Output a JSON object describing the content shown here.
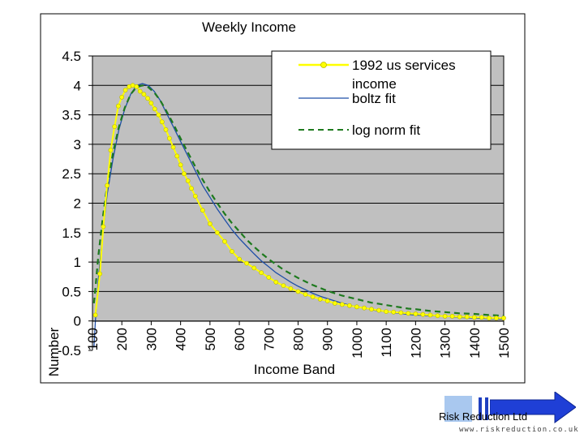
{
  "chart_data": {
    "type": "line",
    "title": "Weekly Income",
    "xlabel": "Income Band",
    "ylabel": "Number",
    "ylim": [
      -0.5,
      4.5
    ],
    "xlim": [
      100,
      1500
    ],
    "y_ticks": [
      "4.5",
      "4",
      "3.5",
      "3",
      "2.5",
      "2",
      "1.5",
      "1",
      "0.5",
      "0",
      "-0.5"
    ],
    "x_ticks": [
      "100",
      "200",
      "300",
      "400",
      "500",
      "600",
      "700",
      "800",
      "900",
      "1000",
      "1100",
      "1200",
      "1300",
      "1400",
      "1500"
    ],
    "grid": "horizontal",
    "legend_position": "top-right",
    "series": [
      {
        "name": "1992 us services income",
        "color": "#ffff00",
        "style": "line-markers",
        "x": [
          110,
          125,
          137,
          150,
          162,
          175,
          188,
          200,
          212,
          225,
          237,
          250,
          262,
          275,
          288,
          300,
          312,
          325,
          337,
          350,
          362,
          375,
          388,
          400,
          412,
          425,
          437,
          450,
          475,
          500,
          525,
          550,
          575,
          600,
          625,
          650,
          675,
          700,
          725,
          750,
          775,
          800,
          825,
          850,
          875,
          900,
          925,
          950,
          975,
          1000,
          1025,
          1050,
          1075,
          1100,
          1125,
          1150,
          1175,
          1200,
          1225,
          1250,
          1275,
          1300,
          1325,
          1350,
          1375,
          1400,
          1425,
          1450,
          1475,
          1500
        ],
        "values": [
          0.1,
          0.8,
          1.6,
          2.3,
          2.9,
          3.3,
          3.65,
          3.8,
          3.92,
          3.98,
          4.0,
          3.98,
          3.9,
          3.85,
          3.78,
          3.7,
          3.6,
          3.5,
          3.38,
          3.25,
          3.1,
          2.95,
          2.8,
          2.65,
          2.5,
          2.38,
          2.25,
          2.12,
          1.88,
          1.65,
          1.5,
          1.35,
          1.18,
          1.05,
          0.98,
          0.9,
          0.82,
          0.74,
          0.66,
          0.6,
          0.55,
          0.5,
          0.45,
          0.41,
          0.37,
          0.34,
          0.3,
          0.28,
          0.26,
          0.24,
          0.22,
          0.2,
          0.18,
          0.16,
          0.15,
          0.14,
          0.13,
          0.12,
          0.11,
          0.1,
          0.09,
          0.08,
          0.08,
          0.07,
          0.07,
          0.06,
          0.06,
          0.05,
          0.05,
          0.05
        ]
      },
      {
        "name": "boltz fit",
        "color": "#1f4fa8",
        "style": "solid",
        "x": [
          105,
          110,
          120,
          135,
          150,
          170,
          190,
          210,
          230,
          250,
          270,
          290,
          310,
          330,
          350,
          375,
          400,
          425,
          450,
          475,
          500,
          525,
          550,
          575,
          600,
          625,
          650,
          675,
          700,
          725,
          750,
          775,
          800,
          825,
          850,
          875,
          900,
          925,
          950,
          975,
          1000,
          1025,
          1050,
          1075,
          1100,
          1125,
          1150,
          1175,
          1200,
          1250,
          1300,
          1350,
          1400,
          1450,
          1500
        ],
        "values": [
          -0.45,
          0.0,
          0.7,
          1.5,
          2.15,
          2.75,
          3.25,
          3.6,
          3.85,
          4.0,
          4.03,
          4.0,
          3.9,
          3.75,
          3.55,
          3.3,
          3.05,
          2.8,
          2.55,
          2.3,
          2.1,
          1.9,
          1.72,
          1.55,
          1.4,
          1.27,
          1.14,
          1.02,
          0.92,
          0.82,
          0.74,
          0.66,
          0.59,
          0.53,
          0.47,
          0.42,
          0.38,
          0.34,
          0.3,
          0.27,
          0.24,
          0.22,
          0.19,
          0.17,
          0.16,
          0.14,
          0.13,
          0.11,
          0.1,
          0.09,
          0.08,
          0.06,
          0.05,
          0.04,
          0.03
        ]
      },
      {
        "name": "log norm fit",
        "color": "#1e7a1e",
        "style": "dashed",
        "x": [
          105,
          110,
          120,
          135,
          150,
          170,
          190,
          210,
          230,
          250,
          270,
          290,
          310,
          330,
          350,
          375,
          400,
          425,
          450,
          475,
          500,
          525,
          550,
          575,
          600,
          625,
          650,
          675,
          700,
          725,
          750,
          775,
          800,
          825,
          850,
          875,
          900,
          925,
          950,
          975,
          1000,
          1025,
          1050,
          1075,
          1100,
          1125,
          1150,
          1175,
          1200,
          1250,
          1300,
          1350,
          1400,
          1450,
          1500
        ],
        "values": [
          0.3,
          0.55,
          1.1,
          1.75,
          2.3,
          2.85,
          3.3,
          3.62,
          3.85,
          3.97,
          4.0,
          3.97,
          3.88,
          3.75,
          3.58,
          3.35,
          3.1,
          2.86,
          2.62,
          2.4,
          2.19,
          2.0,
          1.82,
          1.66,
          1.52,
          1.38,
          1.26,
          1.15,
          1.05,
          0.96,
          0.87,
          0.8,
          0.73,
          0.67,
          0.61,
          0.56,
          0.51,
          0.47,
          0.43,
          0.4,
          0.37,
          0.34,
          0.31,
          0.29,
          0.27,
          0.25,
          0.23,
          0.21,
          0.2,
          0.17,
          0.15,
          0.13,
          0.12,
          0.1,
          0.09
        ]
      }
    ],
    "legend": {
      "entries": [
        {
          "label_line1": "1992 us services",
          "label_line2": "income"
        },
        {
          "label_line1": "boltz fit"
        },
        {
          "label_line1": "log norm fit"
        }
      ]
    }
  },
  "footer": {
    "company": "Risk Reduction Ltd",
    "website": "www.riskreduction.co.uk"
  }
}
